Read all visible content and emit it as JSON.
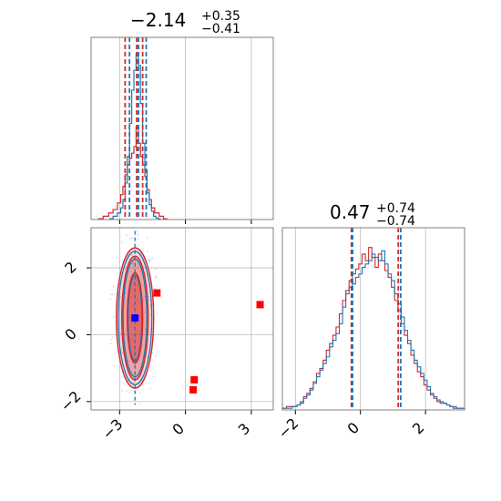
{
  "chart_data": {
    "type": "corner",
    "parameters": [
      "",
      ""
    ],
    "colors": {
      "series_a": "#1f77b4",
      "series_b": "#d62728",
      "marker": "#ff0000",
      "truth": "#0000ff",
      "grid": "#b0b0b0",
      "axis": "#808080"
    },
    "panels": {
      "p1_hist": {
        "title_main": "−2.14",
        "title_sup": "+0.35",
        "title_sub": "−0.41",
        "xlim": [
          -4.3,
          4.0
        ],
        "quantiles_a": [
          -2.55,
          -2.14,
          -1.79
        ],
        "quantiles_b": [
          -2.75,
          -2.22,
          -1.95
        ],
        "hist_a": {
          "x": [
            -3.4,
            -3.2,
            -3.0,
            -2.9,
            -2.8,
            -2.7,
            -2.6,
            -2.5,
            -2.4,
            -2.3,
            -2.2,
            -2.1,
            -2.0,
            -1.9,
            -1.8,
            -1.7,
            -1.6,
            -1.5,
            -1.4,
            -1.3,
            -1.2
          ],
          "y": [
            0.005,
            0.02,
            0.04,
            0.07,
            0.12,
            0.22,
            0.38,
            0.58,
            0.78,
            0.9,
            1.0,
            0.93,
            0.7,
            0.46,
            0.3,
            0.16,
            0.09,
            0.05,
            0.02,
            0.01,
            0.005
          ]
        },
        "hist_b": {
          "x": [
            -3.9,
            -3.6,
            -3.4,
            -3.2,
            -3.0,
            -2.9,
            -2.8,
            -2.7,
            -2.6,
            -2.5,
            -2.4,
            -2.3,
            -2.2,
            -2.1,
            -2.0,
            -1.9,
            -1.8,
            -1.7,
            -1.6,
            -1.5,
            -1.3,
            -1.1,
            -0.9
          ],
          "y": [
            0.005,
            0.02,
            0.04,
            0.06,
            0.1,
            0.15,
            0.2,
            0.27,
            0.33,
            0.37,
            0.4,
            0.44,
            0.56,
            0.46,
            0.38,
            0.33,
            0.26,
            0.18,
            0.12,
            0.07,
            0.04,
            0.02,
            0.005
          ]
        }
      },
      "p2_hist": {
        "title_main": "0.47",
        "title_sup": "+0.74",
        "title_sub": "−0.74",
        "xlim": [
          -2.4,
          3.2
        ],
        "xticks": [
          -2,
          0,
          2
        ],
        "xtick_labels": [
          "−2",
          "0",
          "2"
        ],
        "quantiles_a": [
          -0.27,
          0.47,
          1.21
        ],
        "quantiles_b": [
          -0.25,
          1.19
        ],
        "hist_a": {
          "x": [
            -2.35,
            -2.2,
            -2.0,
            -1.9,
            -1.8,
            -1.7,
            -1.6,
            -1.5,
            -1.4,
            -1.3,
            -1.2,
            -1.1,
            -1.0,
            -0.9,
            -0.8,
            -0.7,
            -0.6,
            -0.5,
            -0.4,
            -0.3,
            -0.2,
            -0.1,
            0.0,
            0.1,
            0.2,
            0.3,
            0.4,
            0.5,
            0.6,
            0.7,
            0.8,
            0.9,
            1.0,
            1.1,
            1.2,
            1.3,
            1.4,
            1.5,
            1.6,
            1.7,
            1.8,
            1.9,
            2.0,
            2.1,
            2.2,
            2.3,
            2.4,
            2.5,
            2.6,
            2.7,
            2.8,
            2.9,
            3.0,
            3.15
          ],
          "y": [
            0.01,
            0.01,
            0.02,
            0.03,
            0.05,
            0.07,
            0.09,
            0.12,
            0.16,
            0.2,
            0.24,
            0.28,
            0.32,
            0.38,
            0.42,
            0.46,
            0.52,
            0.62,
            0.7,
            0.74,
            0.76,
            0.8,
            0.82,
            0.86,
            0.88,
            0.9,
            0.94,
            0.92,
            0.9,
            0.96,
            0.88,
            0.82,
            0.78,
            0.7,
            0.64,
            0.56,
            0.48,
            0.42,
            0.36,
            0.3,
            0.26,
            0.22,
            0.18,
            0.14,
            0.1,
            0.08,
            0.06,
            0.05,
            0.04,
            0.03,
            0.02,
            0.02,
            0.01,
            0.01
          ]
        },
        "hist_b": {
          "x": [
            -2.35,
            -2.2,
            -2.0,
            -1.9,
            -1.8,
            -1.7,
            -1.6,
            -1.5,
            -1.4,
            -1.3,
            -1.2,
            -1.1,
            -1.0,
            -0.9,
            -0.8,
            -0.7,
            -0.6,
            -0.5,
            -0.4,
            -0.3,
            -0.2,
            -0.1,
            0.0,
            0.1,
            0.2,
            0.3,
            0.4,
            0.5,
            0.6,
            0.7,
            0.8,
            0.9,
            1.0,
            1.1,
            1.2,
            1.3,
            1.4,
            1.5,
            1.6,
            1.7,
            1.8,
            1.9,
            2.0,
            2.1,
            2.2,
            2.3,
            2.4,
            2.5,
            2.6,
            2.7,
            2.8,
            2.9,
            3.0,
            3.15
          ],
          "y": [
            0.01,
            0.02,
            0.02,
            0.03,
            0.04,
            0.08,
            0.1,
            0.13,
            0.17,
            0.22,
            0.25,
            0.3,
            0.36,
            0.4,
            0.45,
            0.5,
            0.58,
            0.66,
            0.72,
            0.78,
            0.82,
            0.85,
            0.88,
            0.94,
            0.9,
            0.98,
            0.92,
            0.86,
            0.94,
            0.9,
            0.84,
            0.8,
            0.74,
            0.66,
            0.6,
            0.52,
            0.45,
            0.4,
            0.33,
            0.28,
            0.23,
            0.2,
            0.15,
            0.12,
            0.09,
            0.07,
            0.05,
            0.04,
            0.04,
            0.03,
            0.02,
            0.01,
            0.01,
            0.01
          ]
        }
      },
      "p3_2d": {
        "xlim": [
          -4.3,
          4.0
        ],
        "ylim": [
          -2.25,
          3.2
        ],
        "xticks": [
          -3,
          0,
          3
        ],
        "xtick_labels": [
          "−3",
          "0",
          "3"
        ],
        "yticks": [
          -2,
          0,
          2
        ],
        "ytick_labels": [
          "−2",
          "0",
          "2"
        ],
        "center": [
          -2.3,
          0.5
        ],
        "levels": [
          {
            "rx": 0.35,
            "ry": 1.35,
            "fill_b": 0.45
          },
          {
            "rx": 0.6,
            "ry": 1.85,
            "fill_b": 0.3
          },
          {
            "rx": 0.85,
            "ry": 2.1,
            "fill_b": 0.18
          }
        ],
        "markers": [
          [
            -1.3,
            1.25
          ],
          [
            0.4,
            -1.35
          ],
          [
            0.35,
            -1.65
          ],
          [
            3.4,
            0.9
          ]
        ],
        "truth": [
          -2.3,
          0.5
        ]
      }
    }
  }
}
